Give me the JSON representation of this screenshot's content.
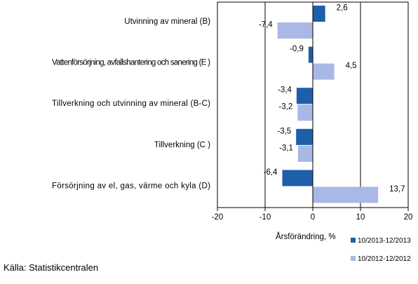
{
  "chart_data": {
    "type": "bar",
    "orientation": "horizontal",
    "categories": [
      "Utvinning av mineral  (B)",
      "Vattenförsörjning, avfallshantering och sanering (E )",
      "Tillverkning och utvinning av mineral (B-C)",
      "Tillverkning (C )",
      "Försörjning av el, gas, värme och kyla (D)"
    ],
    "series": [
      {
        "name": "10/2013-12/2013",
        "color": "#1f5faa",
        "values": [
          2.6,
          -0.9,
          -3.4,
          -3.5,
          -6.4
        ],
        "labels": [
          "2,6",
          "-0,9",
          "-3,4",
          "-3,5",
          "-6,4"
        ]
      },
      {
        "name": "10/2012-12/2012",
        "color": "#a9b8e6",
        "values": [
          -7.4,
          4.5,
          -3.2,
          -3.1,
          13.7
        ],
        "labels": [
          "-7,4",
          "4,5",
          "-3,2",
          "-3,1",
          "13,7"
        ]
      }
    ],
    "xlim": [
      -20,
      20
    ],
    "xticks": [
      -20,
      -10,
      0,
      10,
      20
    ],
    "xtick_labels": [
      "-20",
      "-10",
      "0",
      "10",
      "20"
    ],
    "xlabel": "Årsförändring, %",
    "gridlines": "vertical",
    "legend_position": "bottom-right"
  },
  "source_text": "Källa: Statistikcentralen"
}
